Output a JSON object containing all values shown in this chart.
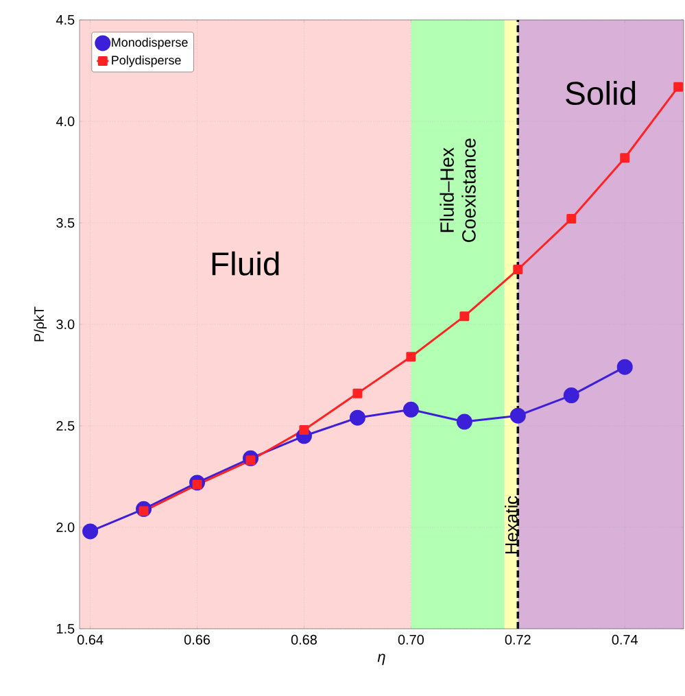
{
  "chart_data": {
    "type": "line",
    "xlabel": "η",
    "ylabel": "P/ρkT",
    "x": [
      0.64,
      0.65,
      0.66,
      0.67,
      0.68,
      0.69,
      0.7,
      0.71,
      0.72,
      0.73,
      0.74,
      0.75
    ],
    "series": [
      {
        "name": "Monodisperse",
        "color": "#3b1fd9",
        "marker": "circle",
        "line_style": "solid",
        "values": [
          1.98,
          2.09,
          2.22,
          2.34,
          2.45,
          2.54,
          2.58,
          2.52,
          2.55,
          2.65,
          2.79,
          null
        ]
      },
      {
        "name": "Polydisperse",
        "color": "#ff2222",
        "marker": "square",
        "line_style": "solid",
        "values": [
          null,
          2.08,
          2.21,
          2.33,
          2.48,
          2.66,
          2.84,
          3.04,
          3.27,
          3.52,
          3.82,
          4.17
        ]
      }
    ],
    "xlim": [
      0.638,
      0.751
    ],
    "ylim": [
      1.5,
      4.5
    ],
    "xticks": [
      0.64,
      0.66,
      0.68,
      {
        "value": 0.7,
        "label": "0.70"
      },
      0.72,
      0.74
    ],
    "yticks": [
      {
        "value": 1.5,
        "label": "1.5"
      },
      {
        "value": 2,
        "label": "2.0"
      },
      {
        "value": 2.5,
        "label": "2.5"
      },
      {
        "value": 3,
        "label": "3.0"
      },
      {
        "value": 3.5,
        "label": "3.5"
      },
      {
        "value": 4,
        "label": "4.0"
      },
      {
        "value": 4.5,
        "label": "4.5"
      }
    ],
    "bands": [
      {
        "axis": "x",
        "from": 0.638,
        "to": 0.7,
        "label": "Fluid",
        "color": "#ffd6d6"
      },
      {
        "axis": "x",
        "from": 0.7,
        "to": 0.7175,
        "label": "Fluid–Hex Coexistance",
        "color": "#b3ffb3"
      },
      {
        "axis": "x",
        "from": 0.7175,
        "to": 0.72,
        "label": "Hexatic",
        "color": "#ffffb3"
      },
      {
        "axis": "x",
        "from": 0.72,
        "to": 0.751,
        "label": "Solid",
        "color": "#d8b0d8"
      }
    ],
    "ref_lines": [
      {
        "axis": "x",
        "value": 0.72,
        "color": "#000000",
        "line_style": "dashed"
      }
    ],
    "grid": true,
    "legend": "top left"
  }
}
